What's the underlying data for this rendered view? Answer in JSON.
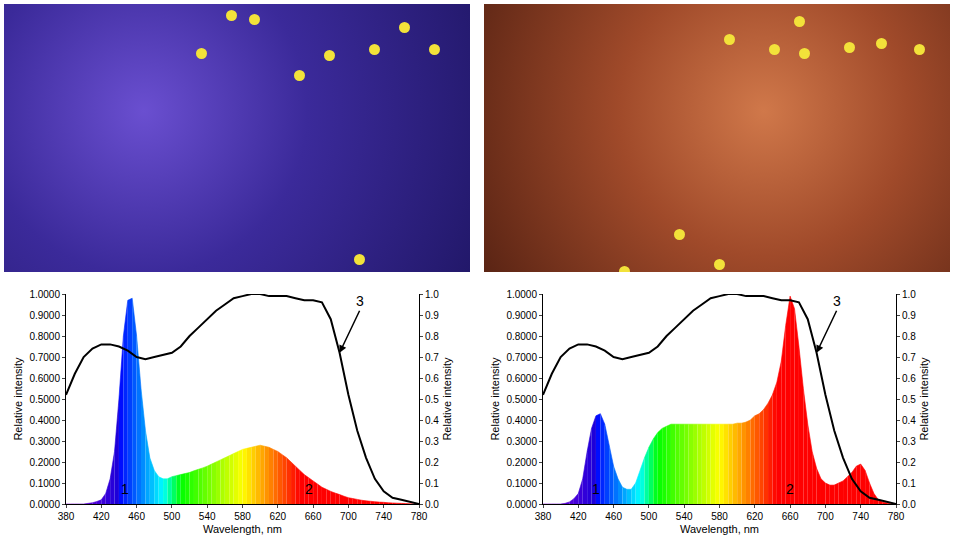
{
  "chart_data": [
    {
      "type": "area",
      "xlabel": "Wavelength, nm",
      "ylabel": "Relative intensity",
      "y2label": "Relative intensity",
      "xlim": [
        380,
        780
      ],
      "xticks": [
        380,
        420,
        460,
        500,
        540,
        580,
        620,
        660,
        700,
        740,
        780
      ],
      "ylim": [
        0,
        1
      ],
      "yticks": [
        {
          "value": 0,
          "label": "0.0000"
        },
        {
          "value": 0.1,
          "label": "0.1000"
        },
        {
          "value": 0.2,
          "label": "0.2000"
        },
        {
          "value": 0.3,
          "label": "0.3000"
        },
        {
          "value": 0.4,
          "label": "0.4000"
        },
        {
          "value": 0.5,
          "label": "0.5000"
        },
        {
          "value": 0.6,
          "label": "0.6000"
        },
        {
          "value": 0.7,
          "label": "0.7000"
        },
        {
          "value": 0.8,
          "label": "0.8000"
        },
        {
          "value": 0.9,
          "label": "0.9000"
        },
        {
          "value": 1,
          "label": "1.0000"
        }
      ],
      "y2lim": [
        0,
        1
      ],
      "y2ticks": [
        {
          "value": 0,
          "label": "0.0"
        },
        {
          "value": 0.1,
          "label": "0.1"
        },
        {
          "value": 0.2,
          "label": "0.2"
        },
        {
          "value": 0.3,
          "label": "0.3"
        },
        {
          "value": 0.4,
          "label": "0.4"
        },
        {
          "value": 0.5,
          "label": "0.5"
        },
        {
          "value": 0.6,
          "label": "0.6"
        },
        {
          "value": 0.7,
          "label": "0.7"
        },
        {
          "value": 0.8,
          "label": "0.8"
        },
        {
          "value": 0.9,
          "label": "0.9"
        },
        {
          "value": 1,
          "label": "1.0"
        }
      ],
      "grid": false,
      "series": [
        {
          "type": "area",
          "axis": "y",
          "x": [
            380,
            385,
            390,
            395,
            400,
            405,
            410,
            415,
            420,
            425,
            430,
            435,
            440,
            445,
            450,
            455,
            460,
            465,
            470,
            475,
            480,
            485,
            490,
            495,
            500,
            505,
            510,
            515,
            520,
            525,
            530,
            535,
            540,
            545,
            550,
            555,
            560,
            565,
            570,
            575,
            580,
            585,
            590,
            595,
            600,
            605,
            610,
            615,
            620,
            625,
            630,
            635,
            640,
            645,
            650,
            655,
            660,
            665,
            670,
            675,
            680,
            685,
            690,
            695,
            700,
            705,
            710,
            715,
            720,
            725,
            730,
            735,
            740,
            745,
            750,
            755,
            760,
            765,
            770,
            775,
            780
          ],
          "values": [
            0,
            0,
            0,
            0,
            0,
            0.003,
            0.006,
            0.012,
            0.02,
            0.05,
            0.12,
            0.25,
            0.5,
            0.8,
            0.97,
            0.98,
            0.8,
            0.55,
            0.35,
            0.22,
            0.16,
            0.13,
            0.12,
            0.12,
            0.13,
            0.135,
            0.14,
            0.145,
            0.15,
            0.158,
            0.165,
            0.172,
            0.18,
            0.19,
            0.2,
            0.21,
            0.22,
            0.23,
            0.24,
            0.25,
            0.26,
            0.265,
            0.27,
            0.275,
            0.28,
            0.275,
            0.27,
            0.26,
            0.25,
            0.235,
            0.22,
            0.2,
            0.18,
            0.16,
            0.14,
            0.125,
            0.11,
            0.095,
            0.08,
            0.07,
            0.06,
            0.052,
            0.045,
            0.037,
            0.03,
            0.026,
            0.022,
            0.018,
            0.015,
            0.013,
            0.011,
            0.009,
            0.008,
            0.006,
            0.005,
            0.004,
            0.003,
            0.002,
            0.001,
            0,
            0
          ]
        },
        {
          "type": "line",
          "axis": "y2",
          "color": "#000000",
          "x": [
            380,
            390,
            400,
            410,
            420,
            430,
            440,
            450,
            460,
            470,
            480,
            490,
            500,
            510,
            520,
            530,
            540,
            550,
            560,
            570,
            580,
            590,
            600,
            610,
            620,
            630,
            640,
            650,
            660,
            670,
            680,
            690,
            700,
            710,
            720,
            730,
            740,
            750,
            760,
            770,
            780
          ],
          "values": [
            0.52,
            0.62,
            0.7,
            0.74,
            0.76,
            0.76,
            0.75,
            0.73,
            0.7,
            0.69,
            0.7,
            0.71,
            0.72,
            0.75,
            0.8,
            0.84,
            0.88,
            0.92,
            0.95,
            0.98,
            0.99,
            1.0,
            1.0,
            0.99,
            0.99,
            0.99,
            0.98,
            0.97,
            0.97,
            0.96,
            0.88,
            0.72,
            0.52,
            0.35,
            0.22,
            0.12,
            0.06,
            0.03,
            0.02,
            0.01,
            0
          ]
        }
      ],
      "annotations": [
        {
          "text": "1",
          "x": 447,
          "y": 0.07,
          "axis": "y"
        },
        {
          "text": "2",
          "x": 655,
          "y": 0.07,
          "axis": "y"
        },
        {
          "text": "3",
          "x": 690,
          "y": 0.72,
          "axis": "y2",
          "arrow": true
        }
      ]
    },
    {
      "type": "area",
      "xlabel": "Wavelength, nm",
      "ylabel": "Relative intensity",
      "y2label": "Relative intensity",
      "xlim": [
        380,
        780
      ],
      "xticks": [
        380,
        420,
        460,
        500,
        540,
        580,
        620,
        660,
        700,
        740,
        780
      ],
      "ylim": [
        0,
        1
      ],
      "yticks": [
        {
          "value": 0,
          "label": "0.0000"
        },
        {
          "value": 0.1,
          "label": "0.1000"
        },
        {
          "value": 0.2,
          "label": "0.2000"
        },
        {
          "value": 0.3,
          "label": "0.3000"
        },
        {
          "value": 0.4,
          "label": "0.4000"
        },
        {
          "value": 0.5,
          "label": "0.5000"
        },
        {
          "value": 0.6,
          "label": "0.6000"
        },
        {
          "value": 0.7,
          "label": "0.7000"
        },
        {
          "value": 0.8,
          "label": "0.8000"
        },
        {
          "value": 0.9,
          "label": "0.9000"
        },
        {
          "value": 1,
          "label": "1.0000"
        }
      ],
      "y2lim": [
        0,
        1
      ],
      "y2ticks": [
        {
          "value": 0,
          "label": "0.0"
        },
        {
          "value": 0.1,
          "label": "0.1"
        },
        {
          "value": 0.2,
          "label": "0.2"
        },
        {
          "value": 0.3,
          "label": "0.3"
        },
        {
          "value": 0.4,
          "label": "0.4"
        },
        {
          "value": 0.5,
          "label": "0.5"
        },
        {
          "value": 0.6,
          "label": "0.6"
        },
        {
          "value": 0.7,
          "label": "0.7"
        },
        {
          "value": 0.8,
          "label": "0.8"
        },
        {
          "value": 0.9,
          "label": "0.9"
        },
        {
          "value": 1,
          "label": "1.0"
        }
      ],
      "grid": false,
      "series": [
        {
          "type": "area",
          "axis": "y",
          "x": [
            380,
            385,
            390,
            395,
            400,
            405,
            410,
            415,
            420,
            425,
            430,
            435,
            440,
            445,
            450,
            455,
            460,
            465,
            470,
            475,
            480,
            485,
            490,
            495,
            500,
            505,
            510,
            515,
            520,
            525,
            530,
            535,
            540,
            545,
            550,
            555,
            560,
            565,
            570,
            575,
            580,
            585,
            590,
            595,
            600,
            605,
            610,
            615,
            620,
            625,
            630,
            635,
            640,
            645,
            650,
            655,
            660,
            665,
            670,
            675,
            680,
            685,
            690,
            695,
            700,
            705,
            710,
            715,
            720,
            725,
            730,
            735,
            740,
            745,
            750,
            755,
            760,
            765,
            770,
            775,
            780
          ],
          "values": [
            0,
            0,
            0,
            0,
            0,
            0.003,
            0.01,
            0.025,
            0.05,
            0.12,
            0.25,
            0.36,
            0.42,
            0.43,
            0.38,
            0.28,
            0.18,
            0.12,
            0.08,
            0.07,
            0.07,
            0.1,
            0.16,
            0.22,
            0.27,
            0.31,
            0.34,
            0.36,
            0.37,
            0.38,
            0.38,
            0.38,
            0.38,
            0.38,
            0.38,
            0.38,
            0.38,
            0.38,
            0.38,
            0.38,
            0.38,
            0.38,
            0.38,
            0.38,
            0.385,
            0.385,
            0.39,
            0.4,
            0.42,
            0.43,
            0.45,
            0.48,
            0.52,
            0.58,
            0.68,
            0.85,
            0.99,
            0.93,
            0.75,
            0.55,
            0.38,
            0.25,
            0.17,
            0.12,
            0.1,
            0.09,
            0.09,
            0.1,
            0.11,
            0.13,
            0.15,
            0.18,
            0.19,
            0.16,
            0.1,
            0.05,
            0.02,
            0.01,
            0.005,
            0,
            0
          ]
        },
        {
          "type": "line",
          "axis": "y2",
          "color": "#000000",
          "x": [
            380,
            390,
            400,
            410,
            420,
            430,
            440,
            450,
            460,
            470,
            480,
            490,
            500,
            510,
            520,
            530,
            540,
            550,
            560,
            570,
            580,
            590,
            600,
            610,
            620,
            630,
            640,
            650,
            660,
            670,
            680,
            690,
            700,
            710,
            720,
            730,
            740,
            750,
            760,
            770,
            780
          ],
          "values": [
            0.52,
            0.62,
            0.7,
            0.74,
            0.76,
            0.76,
            0.75,
            0.73,
            0.7,
            0.69,
            0.7,
            0.71,
            0.72,
            0.75,
            0.8,
            0.84,
            0.88,
            0.92,
            0.95,
            0.98,
            0.99,
            1.0,
            1.0,
            0.99,
            0.99,
            0.99,
            0.98,
            0.97,
            0.97,
            0.96,
            0.88,
            0.72,
            0.52,
            0.35,
            0.22,
            0.12,
            0.06,
            0.03,
            0.02,
            0.01,
            0
          ]
        }
      ],
      "annotations": [
        {
          "text": "1",
          "x": 440,
          "y": 0.07,
          "axis": "y"
        },
        {
          "text": "2",
          "x": 660,
          "y": 0.07,
          "axis": "y"
        },
        {
          "text": "3",
          "x": 690,
          "y": 0.72,
          "axis": "y2",
          "arrow": true
        }
      ]
    }
  ]
}
